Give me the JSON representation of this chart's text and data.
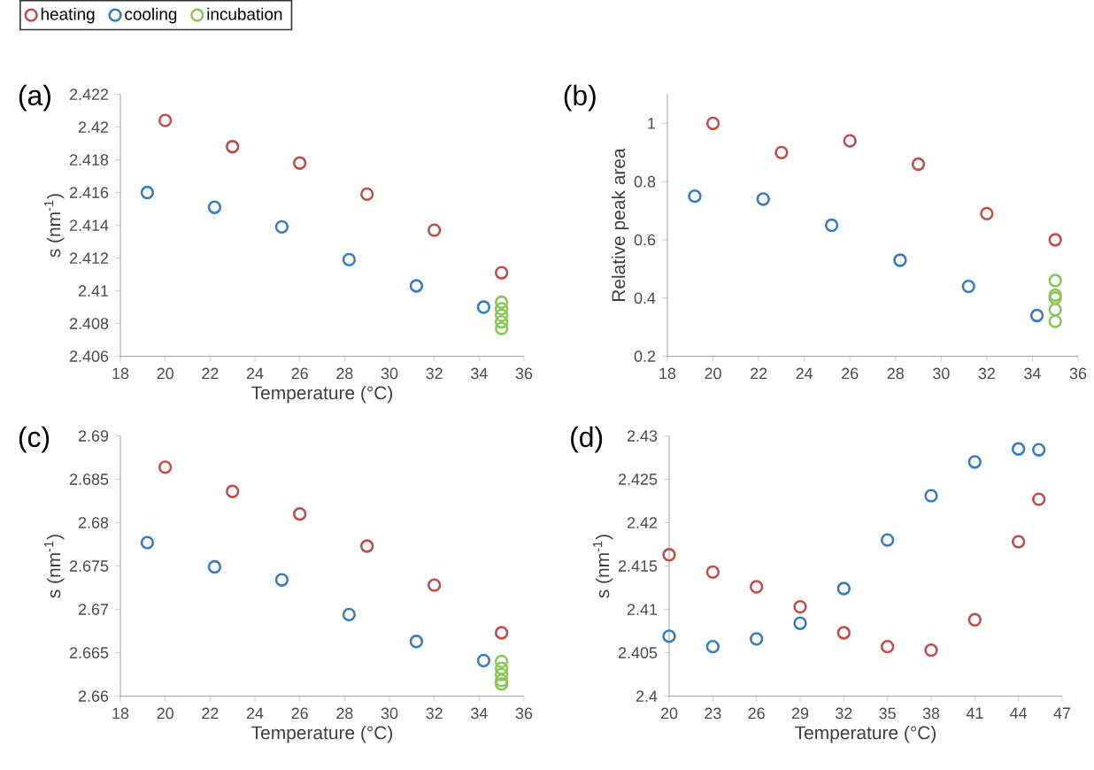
{
  "chart_data": [
    {
      "type": "scatter",
      "title": "(a)",
      "xlabel": "Temperature (°C)",
      "ylabel": "s (nm$^{-1}$)",
      "marker": "circle",
      "legend": "top left",
      "xlim": [
        18,
        36
      ],
      "xticks": [
        18,
        20,
        22,
        24,
        26,
        28,
        30,
        32,
        34,
        36
      ],
      "ylim": [
        2.406,
        2.422
      ],
      "yticks": [
        2.406,
        2.408,
        2.41,
        2.412,
        2.414,
        2.416,
        2.418,
        2.42,
        2.422
      ],
      "series": [
        {
          "name": "heating",
          "color": "#c0504d",
          "x": [
            20,
            23,
            26,
            29,
            32,
            35
          ],
          "values": [
            2.4204,
            2.4188,
            2.4178,
            2.4159,
            2.4137,
            2.4111
          ]
        },
        {
          "name": "cooling",
          "color": "#3a7dc0",
          "x": [
            19.2,
            22.2,
            25.2,
            28.2,
            31.2,
            34.2
          ],
          "values": [
            2.416,
            2.4151,
            2.4139,
            2.4119,
            2.4103,
            2.409
          ]
        },
        {
          "name": "incubation",
          "color": "#8dc75a",
          "x": [
            35,
            35,
            35,
            35,
            35
          ],
          "values": [
            2.4093,
            2.4089,
            2.4085,
            2.4081,
            2.4077
          ]
        }
      ]
    },
    {
      "type": "scatter",
      "title": "(b)",
      "ylabel": "Relative peak area",
      "marker": "circle",
      "xlim": [
        18,
        36
      ],
      "xticks": [
        18,
        20,
        22,
        24,
        26,
        28,
        30,
        32,
        34,
        36
      ],
      "ylim": [
        0.2,
        1.1
      ],
      "yticks": [
        0.2,
        0.4,
        0.6,
        0.8,
        1
      ],
      "series": [
        {
          "color": "#c0504d",
          "x": [
            20,
            23,
            26,
            29,
            32,
            35
          ],
          "values": [
            1.0,
            0.9,
            0.94,
            0.86,
            0.69,
            0.6
          ]
        },
        {
          "color": "#3a7dc0",
          "x": [
            19.2,
            22.2,
            25.2,
            28.2,
            31.2,
            34.2
          ],
          "values": [
            0.75,
            0.74,
            0.65,
            0.53,
            0.44,
            0.34
          ]
        },
        {
          "color": "#8dc75a",
          "x": [
            35,
            35,
            35,
            35,
            35
          ],
          "values": [
            0.46,
            0.41,
            0.4,
            0.36,
            0.32
          ]
        }
      ]
    },
    {
      "type": "scatter",
      "title": "(c)",
      "xlabel": "Temperature (°C)",
      "ylabel": "s (nm$^{-1}$)",
      "marker": "circle",
      "xlim": [
        18,
        36
      ],
      "xticks": [
        18,
        20,
        22,
        24,
        26,
        28,
        30,
        32,
        34,
        36
      ],
      "ylim": [
        2.66,
        2.69
      ],
      "yticks": [
        2.66,
        2.665,
        2.67,
        2.675,
        2.68,
        2.685,
        2.69
      ],
      "series": [
        {
          "color": "#c0504d",
          "x": [
            20,
            23,
            26,
            29,
            32,
            35
          ],
          "values": [
            2.6864,
            2.6836,
            2.681,
            2.6773,
            2.6728,
            2.6673
          ]
        },
        {
          "color": "#3a7dc0",
          "x": [
            19.2,
            22.2,
            25.2,
            28.2,
            31.2,
            34.2
          ],
          "values": [
            2.6777,
            2.6749,
            2.6734,
            2.6694,
            2.6663,
            2.6641
          ]
        },
        {
          "color": "#8dc75a",
          "x": [
            35,
            35,
            35,
            35,
            35
          ],
          "values": [
            2.664,
            2.6632,
            2.6625,
            2.6618,
            2.6614
          ]
        }
      ]
    },
    {
      "type": "scatter",
      "title": "(d)",
      "xlabel": "Temperature (°C)",
      "ylabel": "s (nm$^{-1}$)",
      "marker": "circle",
      "xlim": [
        20,
        47
      ],
      "xticks": [
        20,
        23,
        26,
        29,
        32,
        35,
        38,
        41,
        44,
        47
      ],
      "ylim": [
        2.4,
        2.43
      ],
      "yticks": [
        2.4,
        2.405,
        2.41,
        2.415,
        2.42,
        2.425,
        2.43
      ],
      "series": [
        {
          "color": "#c0504d",
          "x": [
            20,
            23,
            26,
            29,
            32,
            35,
            38,
            41,
            44,
            45.4
          ],
          "values": [
            2.4163,
            2.4143,
            2.4126,
            2.4103,
            2.4073,
            2.4057,
            2.4053,
            2.4088,
            2.4178,
            2.4227
          ]
        },
        {
          "color": "#3a7dc0",
          "x": [
            20,
            23,
            26,
            29,
            32,
            35,
            38,
            41,
            44,
            45.4
          ],
          "values": [
            2.4069,
            2.4057,
            2.4066,
            2.4084,
            2.4124,
            2.418,
            2.4231,
            2.427,
            2.4285,
            2.4284
          ]
        }
      ]
    }
  ]
}
